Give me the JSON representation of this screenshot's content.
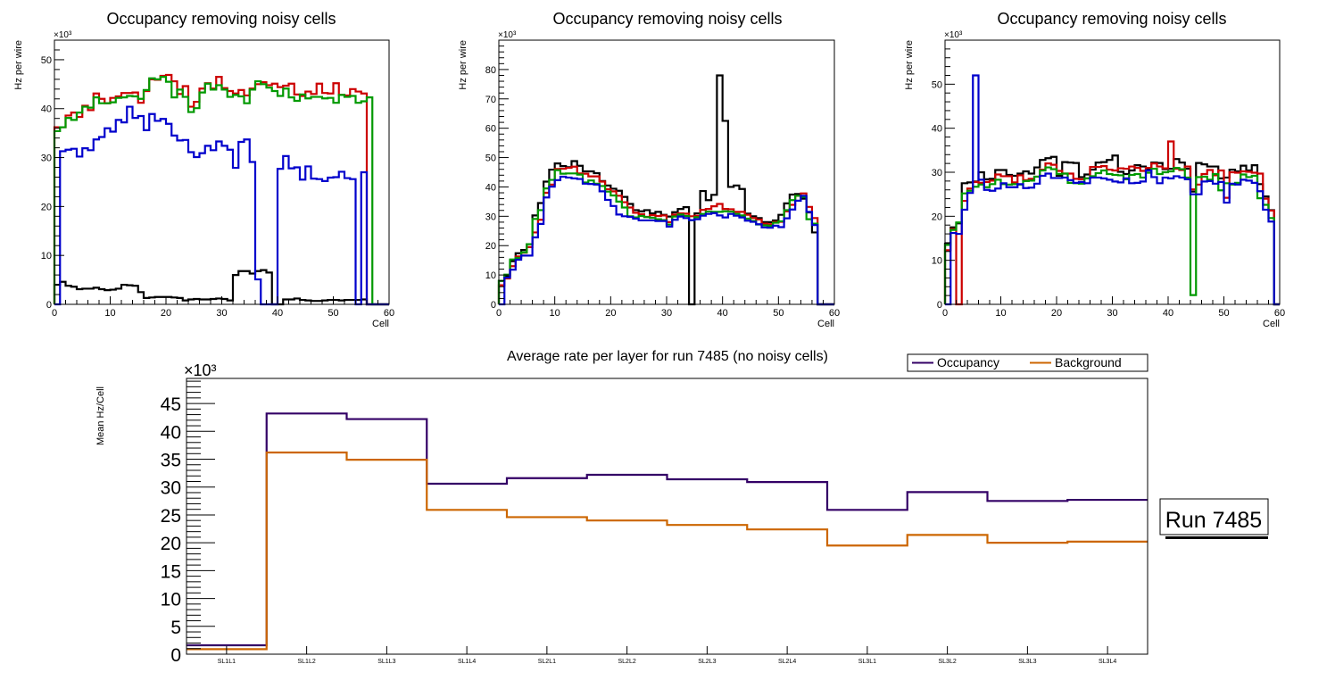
{
  "chart_data": [
    {
      "type": "line",
      "style": "histogram-step",
      "title": "Occupancy removing noisy cells",
      "xlabel": "Cell",
      "ylabel": "Hz per wire",
      "y_multiplier": "×10³",
      "xlim": [
        0,
        60
      ],
      "ylim": [
        0,
        54
      ],
      "x_ticks": [
        0,
        10,
        20,
        30,
        40,
        50,
        60
      ],
      "y_ticks": [
        0,
        10,
        20,
        30,
        40,
        50
      ],
      "series": [
        {
          "name": "black",
          "color": "#000000",
          "values": [
            4.0,
            4.6,
            3.8,
            3.6,
            3.1,
            3.2,
            3.2,
            3.4,
            3.1,
            2.9,
            3.0,
            3.2,
            4.0,
            3.9,
            3.8,
            2.5,
            1.3,
            1.4,
            1.5,
            1.5,
            1.5,
            1.4,
            1.3,
            0.8,
            1.0,
            1.1,
            1.0,
            1.0,
            1.1,
            1.2,
            1.1,
            0.8,
            6.0,
            6.8,
            6.8,
            6.3,
            6.8,
            7.0,
            6.5,
            0,
            0,
            1.0,
            1.0,
            1.2,
            0.9,
            0.8,
            0.7,
            0.7,
            0.8,
            0.9,
            0.9,
            0.8,
            0.9,
            0.9,
            0.9,
            1.0,
            0,
            0,
            0,
            0
          ]
        },
        {
          "name": "red",
          "color": "#cc0000",
          "values": [
            36.2,
            36.2,
            38.6,
            39.2,
            38.3,
            40.6,
            39.7,
            43.1,
            42.0,
            41.1,
            42.2,
            42.5,
            43.2,
            43.2,
            43.3,
            41.2,
            43.6,
            46.0,
            45.9,
            46.7,
            46.9,
            45.6,
            43.0,
            44.6,
            40.4,
            41.4,
            44.1,
            45.2,
            44.1,
            46.5,
            44.2,
            43.6,
            43.1,
            43.8,
            42.7,
            44.1,
            45.0,
            45.4,
            44.8,
            45.1,
            44.4,
            44.7,
            45.1,
            42.9,
            42.6,
            43.5,
            43.0,
            45.1,
            43.2,
            43.1,
            45.2,
            42.8,
            42.7,
            44.0,
            43.5,
            43.1,
            0,
            0,
            0,
            0
          ]
        },
        {
          "name": "green",
          "color": "#009900",
          "values": [
            35.4,
            36.2,
            38.1,
            37.7,
            39.2,
            40.4,
            40.2,
            42.3,
            41.1,
            41.1,
            41.3,
            42.2,
            42.3,
            42.6,
            42.5,
            42.0,
            43.8,
            46.2,
            46.0,
            46.5,
            45.5,
            42.3,
            43.9,
            42.4,
            39.3,
            40.1,
            43.3,
            45.1,
            43.9,
            44.8,
            43.9,
            42.4,
            42.8,
            42.5,
            41.1,
            43.9,
            45.6,
            45.0,
            44.3,
            43.6,
            42.6,
            44.1,
            42.3,
            41.6,
            42.9,
            42.1,
            42.4,
            42.4,
            42.1,
            42.2,
            41.2,
            42.8,
            42.4,
            42.6,
            41.2,
            41.5,
            42.3,
            0,
            0,
            0
          ]
        },
        {
          "name": "blue",
          "color": "#0000cc",
          "values": [
            0,
            31.3,
            31.6,
            31.8,
            30.2,
            31.9,
            31.5,
            33.7,
            34.2,
            36.0,
            35.3,
            37.7,
            37.2,
            40.4,
            38.1,
            38.5,
            35.6,
            38.9,
            37.5,
            37.9,
            36.9,
            34.5,
            33.5,
            33.6,
            31.1,
            30.1,
            30.9,
            32.4,
            31.5,
            33.3,
            32.4,
            31.6,
            27.9,
            33.2,
            33.7,
            29.1,
            5.1,
            0,
            0,
            0,
            27.7,
            30.3,
            27.8,
            28.0,
            25.5,
            28.2,
            25.7,
            25.6,
            25.2,
            25.9,
            26.0,
            27.1,
            25.8,
            25.6,
            0,
            27.0,
            0,
            0,
            0,
            0
          ]
        }
      ]
    },
    {
      "type": "line",
      "style": "histogram-step",
      "title": "Occupancy removing noisy cells",
      "xlabel": "Cell",
      "ylabel": "Hz per wire",
      "y_multiplier": "×10³",
      "xlim": [
        0,
        60
      ],
      "ylim": [
        0,
        90
      ],
      "x_ticks": [
        0,
        10,
        20,
        30,
        40,
        50,
        60
      ],
      "y_ticks": [
        0,
        10,
        20,
        30,
        40,
        50,
        60,
        70,
        80
      ],
      "series": [
        {
          "name": "black",
          "color": "#000000",
          "values": [
            8.0,
            9.6,
            14.7,
            17.4,
            18.5,
            20.5,
            30.3,
            34.5,
            41.8,
            45.9,
            48.0,
            47.1,
            46.7,
            48.8,
            47.2,
            45.3,
            45.3,
            44.7,
            42.0,
            40.5,
            39.4,
            38.7,
            36.6,
            34.2,
            32.1,
            31.7,
            32.1,
            31.0,
            31.5,
            30.5,
            29.9,
            31.4,
            32.5,
            33.1,
            0,
            31.0,
            38.6,
            35.5,
            37.3,
            78.0,
            62.5,
            40.0,
            40.5,
            39.3,
            30.9,
            30.0,
            29.4,
            28.0,
            28.0,
            28.6,
            30.5,
            34.4,
            37.4,
            37.6,
            36.0,
            31.3,
            24.5,
            0,
            0,
            0
          ]
        },
        {
          "name": "red",
          "color": "#cc0000",
          "values": [
            6.5,
            8.8,
            13.0,
            16.3,
            17.6,
            19.5,
            24.5,
            28.8,
            38.0,
            40.8,
            46.1,
            46.2,
            46.5,
            46.9,
            44.6,
            44.5,
            43.6,
            43.6,
            41.8,
            39.2,
            38.5,
            37.0,
            34.8,
            33.0,
            31.2,
            30.7,
            29.8,
            30.4,
            30.1,
            30.3,
            28.0,
            30.6,
            31.0,
            30.9,
            30.0,
            30.2,
            32.2,
            32.5,
            33.4,
            34.2,
            32.5,
            32.4,
            31.5,
            31.5,
            30.5,
            29.4,
            28.9,
            27.5,
            27.3,
            28.1,
            28.1,
            31.7,
            33.9,
            37.0,
            37.8,
            33.2,
            29.4,
            0,
            0,
            0
          ]
        },
        {
          "name": "green",
          "color": "#009900",
          "values": [
            8.0,
            10.1,
            15.3,
            15.8,
            17.7,
            20.5,
            29.1,
            32.1,
            39.5,
            42.4,
            45.7,
            44.5,
            44.6,
            44.6,
            44.2,
            41.5,
            42.2,
            41.1,
            40.3,
            38.4,
            37.1,
            35.0,
            33.0,
            30.0,
            29.6,
            30.1,
            29.7,
            29.5,
            29.0,
            28.7,
            27.2,
            29.9,
            30.6,
            30.1,
            28.7,
            29.7,
            30.8,
            31.6,
            31.5,
            31.5,
            31.7,
            31.6,
            30.8,
            30.3,
            29.2,
            28.4,
            27.2,
            26.9,
            26.8,
            27.8,
            28.3,
            32.1,
            35.5,
            37.0,
            36.6,
            29.0,
            27.5,
            0,
            0,
            0
          ]
        },
        {
          "name": "blue",
          "color": "#0000cc",
          "values": [
            0,
            9.1,
            11.8,
            15.2,
            16.6,
            16.6,
            22.8,
            27.4,
            36.4,
            40.1,
            42.3,
            43.5,
            43.2,
            42.9,
            42.7,
            41.1,
            41.0,
            40.8,
            38.5,
            35.6,
            33.5,
            30.6,
            30.0,
            29.8,
            29.2,
            28.6,
            28.6,
            28.6,
            28.4,
            28.4,
            26.5,
            28.8,
            29.9,
            29.4,
            28.7,
            29.0,
            30.2,
            30.8,
            31.1,
            30.3,
            29.6,
            30.8,
            30.2,
            29.6,
            28.5,
            28.1,
            27.3,
            26.2,
            26.1,
            26.8,
            26.3,
            29.3,
            32.3,
            35.3,
            37.0,
            31.5,
            27.0,
            0,
            0,
            0
          ]
        }
      ]
    },
    {
      "type": "line",
      "style": "histogram-step",
      "title": "Occupancy removing noisy cells",
      "xlabel": "Cell",
      "ylabel": "Hz per wire",
      "y_multiplier": "×10³",
      "xlim": [
        0,
        60
      ],
      "ylim": [
        0,
        60
      ],
      "x_ticks": [
        0,
        10,
        20,
        30,
        40,
        50,
        60
      ],
      "y_ticks": [
        0,
        10,
        20,
        30,
        40,
        50
      ],
      "series": [
        {
          "name": "black",
          "color": "#000000",
          "values": [
            13.8,
            17.5,
            18.4,
            27.5,
            27.7,
            27.9,
            30.0,
            28.4,
            28.5,
            30.5,
            30.5,
            29.4,
            29.2,
            29.7,
            30.2,
            29.7,
            31.1,
            32.8,
            33.2,
            33.5,
            29.2,
            32.3,
            32.2,
            32.1,
            28.9,
            29.5,
            30.6,
            32.2,
            32.3,
            32.8,
            33.8,
            30.1,
            29.6,
            30.4,
            31.6,
            31.3,
            30.8,
            32.2,
            32.1,
            30.7,
            30.8,
            33.0,
            32.2,
            30.8,
            25.6,
            32.1,
            31.8,
            31.3,
            31.3,
            28.6,
            28.8,
            30.6,
            30.2,
            31.5,
            30.4,
            31.6,
            27.3,
            24.5,
            21.4,
            0
          ]
        },
        {
          "name": "red",
          "color": "#cc0000",
          "values": [
            12.3,
            17.1,
            0,
            23.5,
            26.3,
            27.8,
            27.6,
            27.8,
            28.1,
            29.5,
            29.1,
            29.1,
            27.7,
            29.3,
            28.2,
            28.5,
            29.0,
            30.6,
            32.0,
            31.7,
            30.3,
            29.7,
            29.7,
            28.5,
            28.4,
            28.6,
            31.2,
            31.2,
            31.4,
            30.6,
            30.4,
            30.9,
            30.8,
            31.3,
            31.0,
            30.3,
            31.0,
            32.0,
            31.3,
            30.9,
            37.0,
            30.8,
            30.5,
            31.3,
            26.1,
            27.2,
            29.6,
            30.5,
            29.3,
            30.4,
            24.2,
            30.0,
            29.9,
            30.2,
            30.1,
            29.9,
            29.7,
            24.0,
            21.3,
            0
          ]
        },
        {
          "name": "green",
          "color": "#009900",
          "values": [
            13.5,
            16.9,
            18.6,
            25.2,
            25.8,
            26.7,
            27.2,
            26.6,
            27.3,
            28.3,
            27.3,
            27.2,
            27.3,
            27.2,
            28.0,
            28.1,
            29.0,
            30.4,
            31.1,
            30.7,
            29.6,
            29.7,
            27.6,
            27.5,
            27.4,
            28.6,
            29.1,
            29.8,
            30.4,
            29.6,
            29.4,
            29.3,
            28.4,
            29.4,
            29.6,
            28.8,
            29.9,
            30.8,
            29.6,
            30.0,
            30.2,
            31.0,
            30.7,
            28.8,
            2.1,
            28.9,
            29.0,
            28.3,
            29.6,
            25.9,
            27.5,
            27.2,
            27.6,
            29.5,
            28.9,
            29.2,
            24.1,
            22.6,
            19.6,
            0
          ]
        },
        {
          "name": "blue",
          "color": "#0000cc",
          "values": [
            0,
            16.2,
            16.0,
            21.5,
            25.3,
            52.0,
            28.3,
            26.0,
            25.8,
            26.3,
            27.5,
            26.6,
            26.6,
            27.3,
            26.4,
            26.5,
            27.4,
            29.2,
            29.7,
            28.7,
            28.7,
            28.8,
            28.2,
            27.6,
            27.8,
            27.5,
            28.8,
            28.8,
            28.6,
            28.3,
            27.9,
            27.7,
            28.6,
            27.5,
            27.6,
            27.9,
            30.4,
            28.9,
            27.5,
            28.8,
            28.6,
            29.1,
            28.8,
            28.4,
            25.0,
            25.0,
            27.9,
            28.0,
            27.4,
            27.8,
            23.1,
            27.4,
            27.2,
            28.3,
            28.1,
            27.6,
            25.7,
            21.5,
            18.8,
            0
          ]
        }
      ]
    },
    {
      "type": "line",
      "style": "histogram-step",
      "title": "Average rate per layer for run 7485 (no noisy cells)",
      "xlabel": "",
      "ylabel": "Mean Hz/Cell",
      "y_multiplier": "×10³",
      "ylim": [
        0,
        49.5
      ],
      "y_ticks": [
        0,
        5,
        10,
        15,
        20,
        25,
        30,
        35,
        40,
        45
      ],
      "categories": [
        "SL1L1",
        "SL1L2",
        "SL1L3",
        "SL1L4",
        "SL2L1",
        "SL2L2",
        "SL2L3",
        "SL2L4",
        "SL3L1",
        "SL3L2",
        "SL3L3",
        "SL3L4"
      ],
      "legend_position": "top-right",
      "series": [
        {
          "name": "Occupancy",
          "color": "#330066",
          "values": [
            1.6,
            43.2,
            42.2,
            30.6,
            31.6,
            32.2,
            31.4,
            30.9,
            25.9,
            29.1,
            27.5,
            27.7
          ]
        },
        {
          "name": "Background",
          "color": "#cc6600",
          "values": [
            0.9,
            36.2,
            34.9,
            25.9,
            24.6,
            24.0,
            23.2,
            22.4,
            19.5,
            21.4,
            20.0,
            20.2
          ]
        }
      ]
    }
  ],
  "annotation": {
    "run_label": "Run 7485"
  }
}
